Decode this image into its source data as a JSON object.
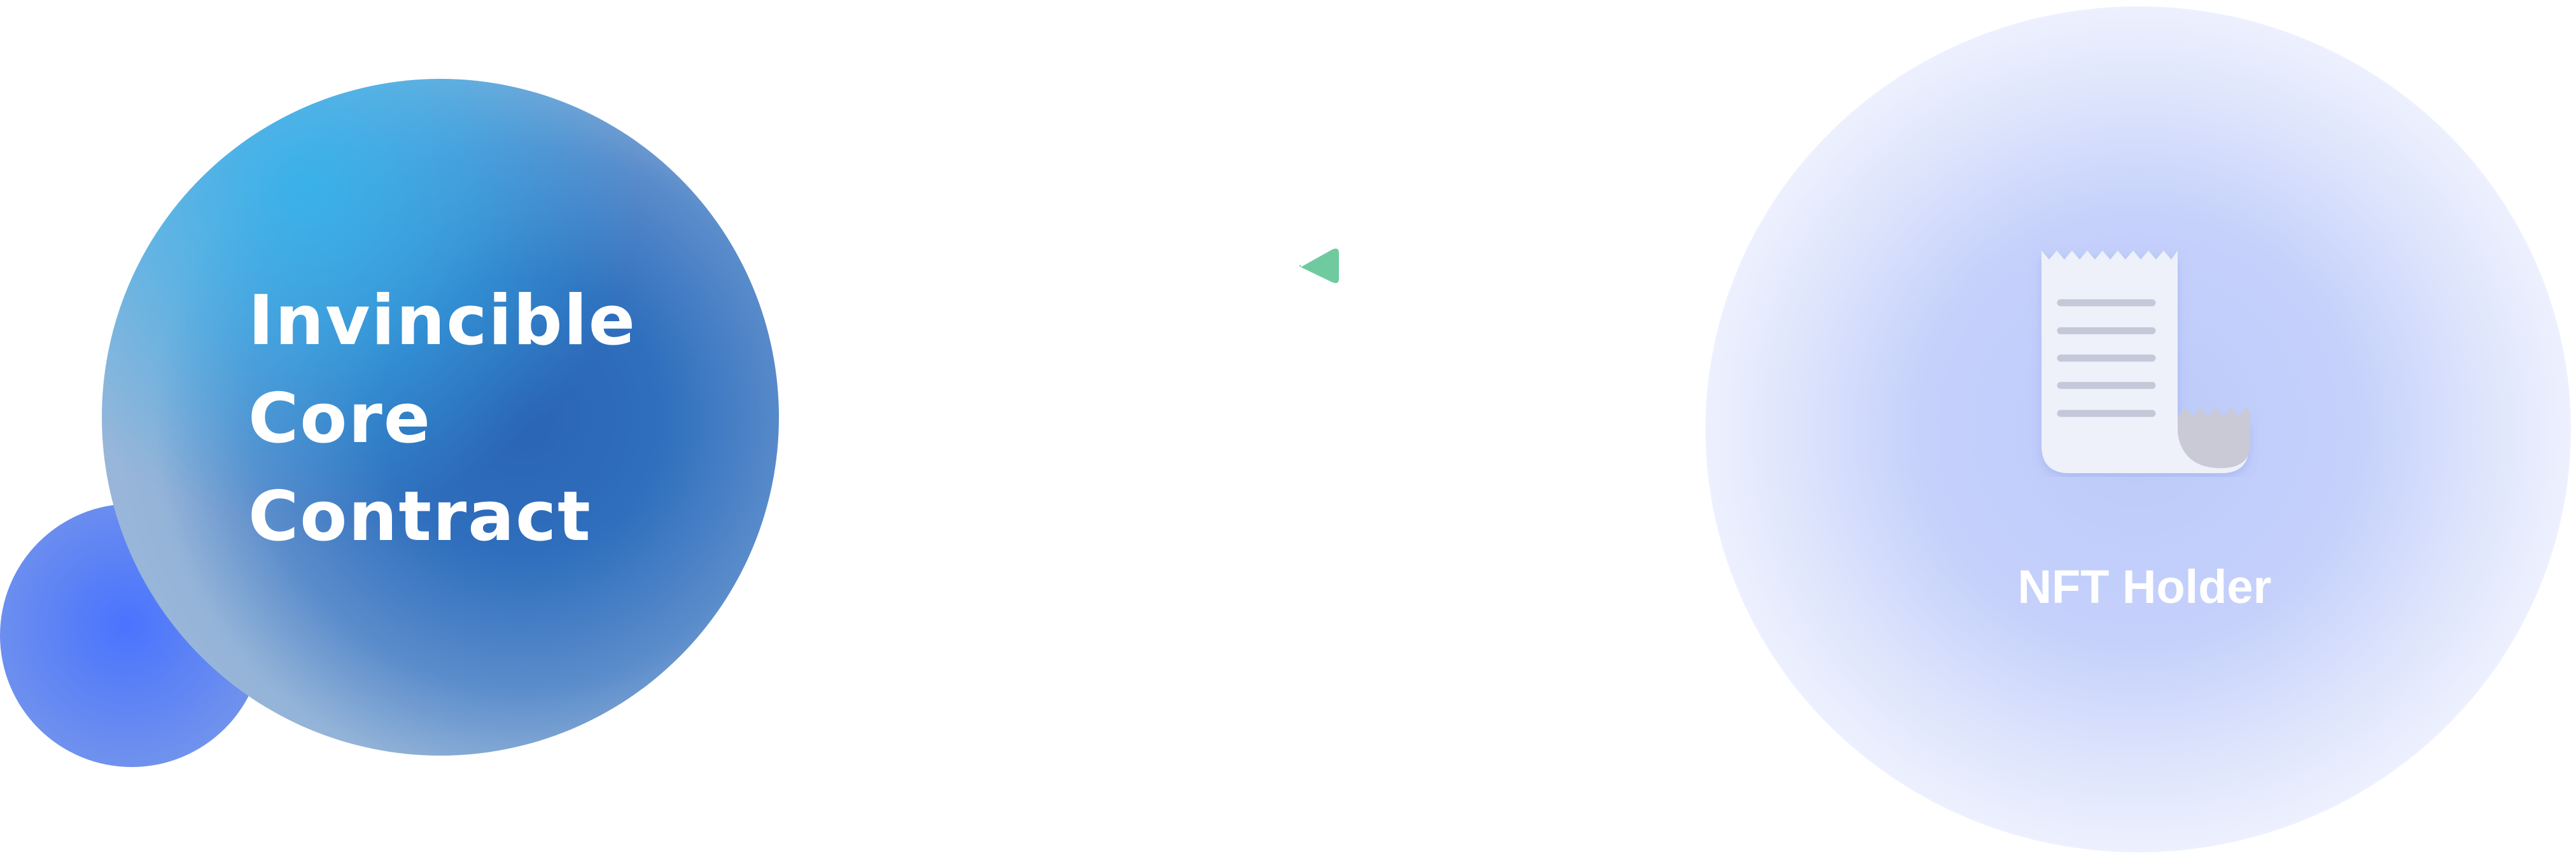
{
  "core": {
    "line1": "Invincible",
    "line2": "Core",
    "line3": "Contract"
  },
  "holder": {
    "label": "NFT Holder",
    "icon": "receipt-icon"
  },
  "connector": {
    "icon": "arrow-left-icon",
    "color": "#6fcb9f"
  },
  "colors": {
    "core_center": "#2a64b4",
    "core_highlight": "#36b2eb",
    "small_bubble": "#4a73ff",
    "holder_glow": "#9cb0f8"
  }
}
